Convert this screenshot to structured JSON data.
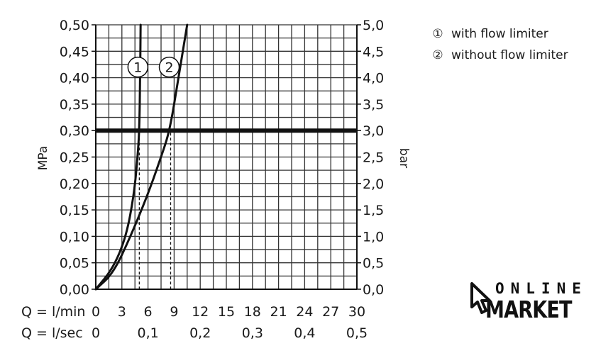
{
  "chart_data": {
    "type": "line",
    "ylabel_left": "MPa",
    "ylabel_right": "bar",
    "y_left_ticks": [
      "0,00",
      "0,05",
      "0,10",
      "0,15",
      "0,20",
      "0,25",
      "0,30",
      "0,35",
      "0,40",
      "0,45",
      "0,50"
    ],
    "y_right_ticks": [
      "0,0",
      "0,5",
      "1,0",
      "1,5",
      "2,0",
      "2,5",
      "3,0",
      "3,5",
      "4,0",
      "4,5",
      "5,0"
    ],
    "ylim": [
      0,
      0.5
    ],
    "x_min_label": "Q = l/min",
    "x_min_ticks": [
      "0",
      "3",
      "6",
      "9",
      "12",
      "15",
      "18",
      "21",
      "24",
      "27",
      "30"
    ],
    "x_sec_label": "Q = l/sec",
    "x_sec_ticks": [
      "0",
      "0,1",
      "0,2",
      "0,3",
      "0,4",
      "0,5"
    ],
    "xlim": [
      0,
      30
    ],
    "reference_line": {
      "y": 0.3
    },
    "series": [
      {
        "name": "1",
        "x": [
          0,
          2,
          3.5,
          4.4,
          4.8,
          5.0,
          5.1,
          5.15
        ],
        "y": [
          0,
          0.04,
          0.1,
          0.18,
          0.25,
          0.3,
          0.4,
          0.5
        ],
        "drop_x": 5.0
      },
      {
        "name": "2",
        "x": [
          0,
          2,
          4,
          6,
          7.5,
          8.5,
          9.5,
          10.5
        ],
        "y": [
          0,
          0.03,
          0.1,
          0.18,
          0.25,
          0.3,
          0.4,
          0.5
        ],
        "drop_x": 8.6
      }
    ],
    "grid": true
  },
  "legend": [
    {
      "mark": "①",
      "label": "with flow limiter"
    },
    {
      "mark": "②",
      "label": "without flow limiter"
    }
  ],
  "logo": {
    "word1": "ONLINE",
    "word2": "MARKET",
    "icon": "cursor-arrow-icon"
  }
}
